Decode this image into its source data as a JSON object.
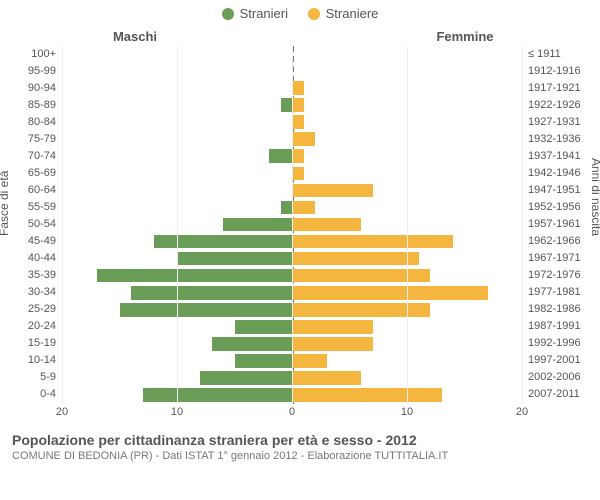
{
  "legend": {
    "male": {
      "label": "Stranieri",
      "color": "#6a9e58"
    },
    "female": {
      "label": "Straniere",
      "color": "#f4b63f"
    }
  },
  "column_headers": {
    "left": "Maschi",
    "right": "Femmine"
  },
  "y_left_title": "Fasce di età",
  "y_right_title": "Anni di nascita",
  "title": "Popolazione per cittadinanza straniera per età e sesso - 2012",
  "subtitle": "COMUNE DI BEDONIA (PR) - Dati ISTAT 1° gennaio 2012 - Elaborazione TUTTITALIA.IT",
  "x_axis": {
    "min": -20,
    "max": 20,
    "ticks": [
      -20,
      -10,
      0,
      10,
      20
    ],
    "tick_labels": [
      "20",
      "10",
      "0",
      "10",
      "20"
    ]
  },
  "grid_color": "#eeeeee",
  "background_color": "#ffffff",
  "axis_font_size": 11,
  "bar_gap_ratio": 0.2,
  "rows": [
    {
      "age": "100+",
      "birth": "≤ 1911",
      "m": 0,
      "f": 0
    },
    {
      "age": "95-99",
      "birth": "1912-1916",
      "m": 0,
      "f": 0
    },
    {
      "age": "90-94",
      "birth": "1917-1921",
      "m": 0,
      "f": 1
    },
    {
      "age": "85-89",
      "birth": "1922-1926",
      "m": 1,
      "f": 1
    },
    {
      "age": "80-84",
      "birth": "1927-1931",
      "m": 0,
      "f": 1
    },
    {
      "age": "75-79",
      "birth": "1932-1936",
      "m": 0,
      "f": 2
    },
    {
      "age": "70-74",
      "birth": "1937-1941",
      "m": 2,
      "f": 1
    },
    {
      "age": "65-69",
      "birth": "1942-1946",
      "m": 0,
      "f": 1
    },
    {
      "age": "60-64",
      "birth": "1947-1951",
      "m": 0,
      "f": 7
    },
    {
      "age": "55-59",
      "birth": "1952-1956",
      "m": 1,
      "f": 2
    },
    {
      "age": "50-54",
      "birth": "1957-1961",
      "m": 6,
      "f": 6
    },
    {
      "age": "45-49",
      "birth": "1962-1966",
      "m": 12,
      "f": 14
    },
    {
      "age": "40-44",
      "birth": "1967-1971",
      "m": 10,
      "f": 11
    },
    {
      "age": "35-39",
      "birth": "1972-1976",
      "m": 17,
      "f": 12
    },
    {
      "age": "30-34",
      "birth": "1977-1981",
      "m": 14,
      "f": 17
    },
    {
      "age": "25-29",
      "birth": "1982-1986",
      "m": 15,
      "f": 12
    },
    {
      "age": "20-24",
      "birth": "1987-1991",
      "m": 5,
      "f": 7
    },
    {
      "age": "15-19",
      "birth": "1992-1996",
      "m": 7,
      "f": 7
    },
    {
      "age": "10-14",
      "birth": "1997-2001",
      "m": 5,
      "f": 3
    },
    {
      "age": "5-9",
      "birth": "2002-2006",
      "m": 8,
      "f": 6
    },
    {
      "age": "0-4",
      "birth": "2007-2011",
      "m": 13,
      "f": 13
    }
  ]
}
